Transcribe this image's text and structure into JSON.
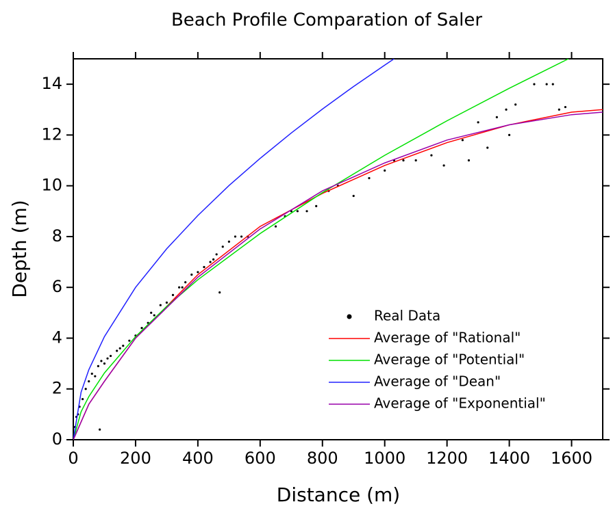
{
  "chart_data": {
    "type": "line",
    "title": "Beach Profile Comparation of Saler",
    "x_label": "Distance (m)",
    "y_label": "Depth (m)",
    "xlim": [
      0,
      1700
    ],
    "xticks": [
      0,
      200,
      400,
      600,
      800,
      1000,
      1200,
      1400,
      1600
    ],
    "ylim": [
      0,
      15
    ],
    "yticks": [
      0,
      2,
      4,
      6,
      8,
      10,
      12,
      14
    ],
    "legend": "lower right",
    "series": [
      {
        "name": "Real Data",
        "color": "#000000",
        "style": "markers",
        "x": [
          5,
          10,
          15,
          20,
          30,
          40,
          50,
          60,
          70,
          80,
          90,
          100,
          110,
          120,
          140,
          150,
          160,
          180,
          200,
          220,
          240,
          250,
          260,
          280,
          300,
          320,
          340,
          350,
          360,
          380,
          400,
          420,
          440,
          450,
          460,
          480,
          500,
          520,
          540,
          560,
          650,
          680,
          700,
          720,
          750,
          780,
          820,
          850,
          900,
          950,
          1000,
          1030,
          1060,
          1100,
          1150,
          1190,
          1250,
          1270,
          1300,
          1330,
          1360,
          1390,
          1400,
          1420,
          1480,
          1520,
          1540,
          1560,
          1580,
          85,
          470
        ],
        "values": [
          0.5,
          0.9,
          1.0,
          1.3,
          1.6,
          2.0,
          2.3,
          2.6,
          2.5,
          2.9,
          3.1,
          3.0,
          3.2,
          3.3,
          3.5,
          3.6,
          3.7,
          3.9,
          4.1,
          4.4,
          4.6,
          5.0,
          4.9,
          5.3,
          5.4,
          5.7,
          6.0,
          6.0,
          6.2,
          6.5,
          6.6,
          6.8,
          7.0,
          7.1,
          7.3,
          7.6,
          7.8,
          8.0,
          8.0,
          8.0,
          8.4,
          8.8,
          9.0,
          9.0,
          9.0,
          9.2,
          9.8,
          10.0,
          9.6,
          10.3,
          10.6,
          11.0,
          11.0,
          11.0,
          11.2,
          10.8,
          11.8,
          11.0,
          12.5,
          11.5,
          12.7,
          13.0,
          12.0,
          13.2,
          14.0,
          14.0,
          14.0,
          13.0,
          13.1,
          0.4,
          5.8
        ]
      },
      {
        "name": "Average of \"Rational\"",
        "color": "#ff0000",
        "style": "line",
        "x": [
          0,
          50,
          100,
          200,
          400,
          600,
          800,
          1000,
          1200,
          1400,
          1600,
          1700
        ],
        "values": [
          0,
          1.4,
          2.3,
          4.0,
          6.5,
          8.4,
          9.7,
          10.8,
          11.7,
          12.4,
          12.9,
          13.0
        ]
      },
      {
        "name": "Average of \"Potential\"",
        "color": "#00e000",
        "style": "line",
        "x": [
          0,
          25,
          50,
          100,
          200,
          300,
          400,
          600,
          800,
          1000,
          1200,
          1400,
          1590
        ],
        "values": [
          0,
          1.1,
          1.7,
          2.63,
          4.06,
          5.25,
          6.3,
          8.12,
          9.73,
          11.2,
          12.56,
          13.84,
          15
        ]
      },
      {
        "name": "Average of \"Dean\"",
        "color": "#2020ff",
        "style": "line",
        "x": [
          0,
          25,
          50,
          100,
          200,
          300,
          400,
          500,
          600,
          700,
          800,
          900,
          1000,
          1030
        ],
        "values": [
          0,
          1.87,
          2.76,
          4.06,
          6.0,
          7.52,
          8.83,
          10.01,
          11.08,
          12.08,
          13.02,
          13.91,
          14.75,
          15
        ]
      },
      {
        "name": "Average of \"Exponential\"",
        "color": "#9900aa",
        "style": "line",
        "x": [
          0,
          50,
          100,
          200,
          400,
          600,
          800,
          1000,
          1200,
          1400,
          1600,
          1700
        ],
        "values": [
          0,
          1.4,
          2.3,
          4.0,
          6.4,
          8.3,
          9.8,
          10.9,
          11.8,
          12.4,
          12.8,
          12.9
        ]
      }
    ]
  }
}
